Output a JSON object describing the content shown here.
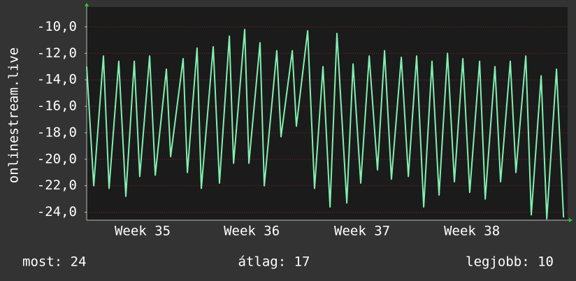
{
  "chart_data": {
    "type": "line",
    "y_label": "onlinestream.live",
    "x": [
      0,
      0.45,
      1.07,
      1.43,
      2.05,
      2.5,
      3.04,
      3.39,
      4.02,
      4.38,
      5.09,
      5.36,
      6.16,
      6.43,
      7.05,
      7.32,
      8.08,
      8.48,
      9.11,
      9.38,
      10.09,
      10.36,
      11.07,
      11.34,
      12.14,
      12.41,
      13.13,
      13.39,
      14.11,
      14.55,
      15.09,
      15.54,
      15.98,
      16.61,
      17.01,
      17.5,
      18.04,
      18.57,
      19.02,
      19.46,
      20.09,
      20.54,
      21.07,
      21.52,
      22.05,
      22.5,
      23.04,
      23.48,
      24.02,
      24.46,
      25.09,
      25.45,
      26.07,
      26.43,
      27.05,
      27.41,
      28.04,
      28.39,
      29.02,
      29.38,
      30.0,
      30.45
    ],
    "series": [
      {
        "color": "#80f0b0",
        "values": [
          -13.0,
          -22.0,
          -12.2,
          -22.2,
          -12.6,
          -22.8,
          -12.6,
          -21.3,
          -12.2,
          -21.2,
          -13.2,
          -19.8,
          -12.4,
          -21.0,
          -11.6,
          -22.2,
          -11.5,
          -21.8,
          -10.7,
          -20.3,
          -10.2,
          -20.3,
          -11.2,
          -22.0,
          -11.8,
          -18.3,
          -11.8,
          -17.5,
          -10.3,
          -22.2,
          -13.0,
          -23.6,
          -10.5,
          -23.3,
          -12.8,
          -21.8,
          -12.2,
          -20.8,
          -11.8,
          -21.5,
          -12.3,
          -21.3,
          -12.2,
          -23.6,
          -12.6,
          -22.7,
          -12.0,
          -21.7,
          -12.4,
          -22.5,
          -12.6,
          -23.0,
          -13.0,
          -21.7,
          -12.6,
          -21.0,
          -12.2,
          -24.2,
          -13.7,
          -24.5,
          -13.2,
          -24.4
        ]
      }
    ],
    "xlim": [
      0,
      30.71
    ],
    "xticks": [
      {
        "value": 3.57,
        "label": "Week 35"
      },
      {
        "value": 10.54,
        "label": "Week 36"
      },
      {
        "value": 17.59,
        "label": "Week 37"
      },
      {
        "value": 24.6,
        "label": "Week 38"
      }
    ],
    "ylim": [
      -24.6,
      -8.5
    ],
    "yticks": [
      {
        "value": -10,
        "label": "-10,0"
      },
      {
        "value": -12,
        "label": "-12,0"
      },
      {
        "value": -14,
        "label": "-14,0"
      },
      {
        "value": -16,
        "label": "-16,0"
      },
      {
        "value": -18,
        "label": "-18,0"
      },
      {
        "value": -20,
        "label": "-20,0"
      },
      {
        "value": -22,
        "label": "-22,0"
      },
      {
        "value": -24,
        "label": "-24,0"
      }
    ],
    "grid": true,
    "footer": [
      "most: 24",
      "átlag: 17",
      "legjobb: 10"
    ]
  }
}
